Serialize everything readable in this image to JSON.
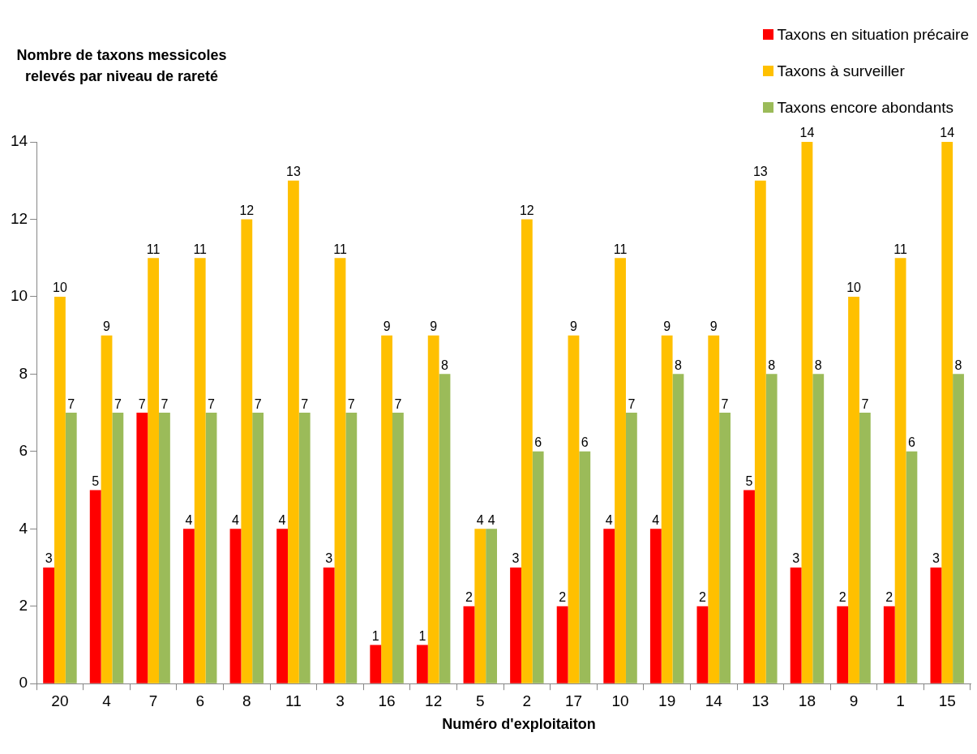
{
  "chart_data": {
    "type": "bar",
    "ylabel": "Nombre de taxons messicoles relevés par niveau de rareté",
    "xlabel": "Numéro d'exploitaiton",
    "categories": [
      "20",
      "4",
      "7",
      "6",
      "8",
      "11",
      "3",
      "16",
      "12",
      "5",
      "2",
      "17",
      "10",
      "19",
      "14",
      "13",
      "18",
      "9",
      "1",
      "15"
    ],
    "series": [
      {
        "name": "Taxons en situation précaire",
        "color": "#ff0000",
        "values": [
          3,
          5,
          7,
          4,
          4,
          4,
          3,
          1,
          1,
          2,
          3,
          2,
          4,
          4,
          2,
          5,
          3,
          2,
          2,
          3
        ]
      },
      {
        "name": "Taxons à surveiller",
        "color": "#ffc000",
        "values": [
          10,
          9,
          11,
          11,
          12,
          13,
          11,
          9,
          9,
          4,
          12,
          9,
          11,
          9,
          9,
          13,
          14,
          10,
          11,
          14
        ]
      },
      {
        "name": "Taxons encore abondants",
        "color": "#9bbb59",
        "values": [
          7,
          7,
          7,
          7,
          7,
          7,
          7,
          7,
          8,
          4,
          6,
          6,
          7,
          8,
          7,
          8,
          8,
          7,
          6,
          8
        ]
      }
    ],
    "ylim": [
      0,
      14
    ],
    "yticks": [
      0,
      2,
      4,
      6,
      8,
      10,
      12,
      14
    ],
    "grid": false,
    "legend": "top right",
    "data_labels": true
  }
}
